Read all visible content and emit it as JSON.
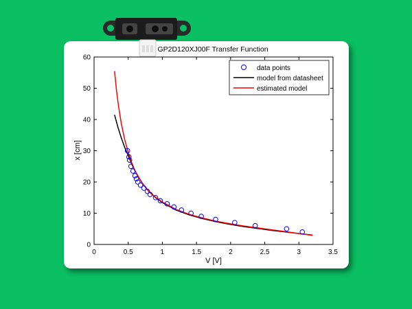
{
  "chart_data": {
    "type": "scatter",
    "title": "GP2D120XJ00F Transfer Function",
    "xlabel": "V [V]",
    "ylabel": "x [cm]",
    "xlim": [
      0,
      3.5
    ],
    "ylim": [
      0,
      60
    ],
    "x_ticks": [
      "0",
      "0.5",
      "1",
      "1.5",
      "2",
      "2.5",
      "3",
      "3.5"
    ],
    "y_ticks": [
      "0",
      "10",
      "20",
      "30",
      "40",
      "50",
      "60"
    ],
    "grid": false,
    "legend_position": "top-right",
    "series": [
      {
        "name": "data points",
        "kind": "markers",
        "color": "#0000FF",
        "x": [
          0.49,
          0.51,
          0.52,
          0.54,
          0.57,
          0.6,
          0.62,
          0.64,
          0.68,
          0.73,
          0.78,
          0.82,
          0.9,
          0.97,
          1.07,
          1.17,
          1.28,
          1.42,
          1.57,
          1.78,
          2.06,
          2.36,
          2.82,
          3.05
        ],
        "y": [
          30,
          28,
          27,
          25,
          23.5,
          22,
          21,
          20,
          19,
          18,
          17,
          16,
          15,
          14,
          13,
          12,
          11,
          10,
          9,
          8,
          7,
          6,
          5,
          4
        ]
      },
      {
        "name": "model from datasheet",
        "kind": "line",
        "color": "#000000",
        "x": [
          0.3,
          0.35,
          0.4,
          0.45,
          0.5,
          0.55,
          0.6,
          0.7,
          0.8,
          0.9,
          1.0,
          1.2,
          1.4,
          1.6,
          1.8,
          2.0,
          2.2,
          2.4,
          2.6,
          2.8,
          3.0,
          3.2
        ],
        "y": [
          41.5,
          37.5,
          34.0,
          31.0,
          28.5,
          25.8,
          23.5,
          19.8,
          17.0,
          15.0,
          13.4,
          11.0,
          9.4,
          8.2,
          7.2,
          6.4,
          5.7,
          5.1,
          4.5,
          4.0,
          3.5,
          3.0
        ]
      },
      {
        "name": "estimated model",
        "kind": "line",
        "color": "#FF0000",
        "x": [
          0.3,
          0.33,
          0.36,
          0.4,
          0.45,
          0.5,
          0.55,
          0.6,
          0.7,
          0.8,
          0.9,
          1.0,
          1.2,
          1.4,
          1.6,
          1.8,
          2.0,
          2.2,
          2.4,
          2.6,
          2.8,
          3.0,
          3.2
        ],
        "y": [
          55.5,
          49.0,
          44.0,
          38.5,
          33.5,
          29.5,
          26.2,
          23.5,
          19.8,
          17.1,
          15.1,
          13.6,
          11.2,
          9.6,
          8.4,
          7.4,
          6.6,
          5.9,
          5.3,
          4.7,
          4.1,
          3.5,
          2.9
        ]
      }
    ]
  }
}
